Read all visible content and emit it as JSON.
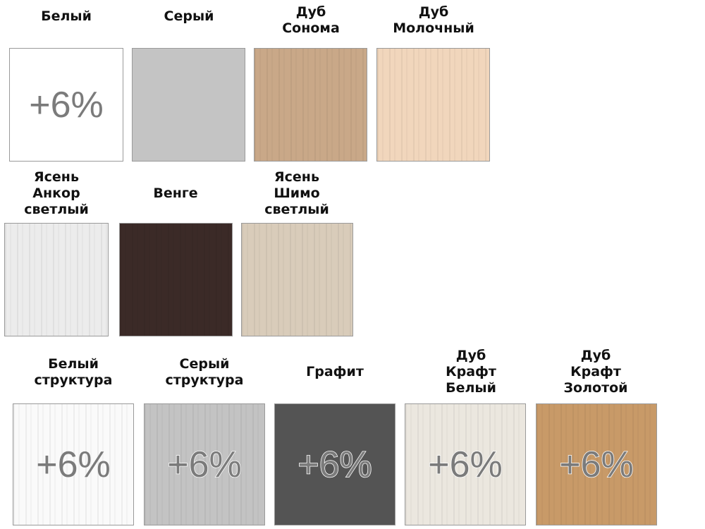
{
  "swatches": [
    {
      "label_lines": [
        "Белый"
      ],
      "color": "#ffffff",
      "badge": "+6%"
    },
    {
      "label_lines": [
        "Серый"
      ],
      "color": "#c4c4c4",
      "badge": ""
    },
    {
      "label_lines": [
        "Дуб",
        "Сонома"
      ],
      "color": "#c9a888",
      "badge": ""
    },
    {
      "label_lines": [
        "Дуб",
        "Молочный"
      ],
      "color": "#f1d6bc",
      "badge": ""
    },
    {
      "label_lines": [
        "Ясень",
        "Анкор",
        "светлый"
      ],
      "color": "#ececec",
      "badge": ""
    },
    {
      "label_lines": [
        "Венге"
      ],
      "color": "#3b2a27",
      "badge": ""
    },
    {
      "label_lines": [
        "Ясень",
        "Шимо",
        "светлый"
      ],
      "color": "#d9ccba",
      "badge": ""
    },
    {
      "label_lines": [
        "Белый",
        "структура"
      ],
      "color": "#fafafa",
      "badge": "+6%"
    },
    {
      "label_lines": [
        "Серый",
        "структура"
      ],
      "color": "#c3c3c3",
      "badge": "+6%"
    },
    {
      "label_lines": [
        "Графит"
      ],
      "color": "#545454",
      "badge": "+6%"
    },
    {
      "label_lines": [
        "Дуб",
        "Крафт",
        "Белый"
      ],
      "color": "#ebe7df",
      "badge": "+6%"
    },
    {
      "label_lines": [
        "Дуб",
        "Крафт",
        "Золотой"
      ],
      "color": "#c89a68",
      "badge": "+6%"
    }
  ]
}
